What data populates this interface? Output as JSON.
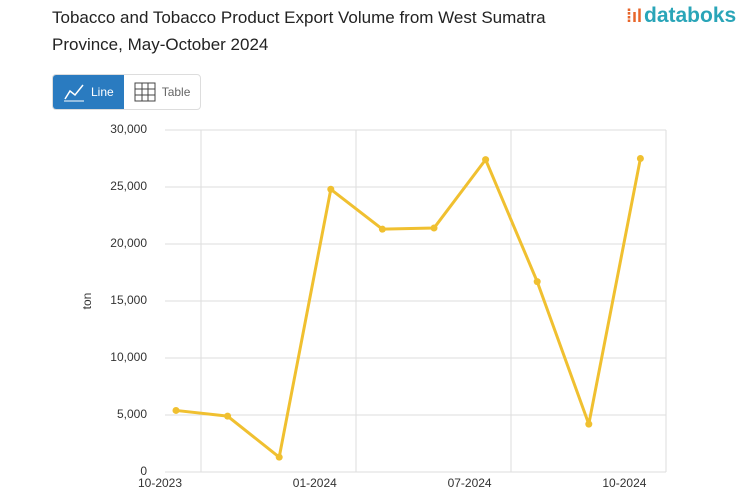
{
  "brand": "databoks",
  "tabs": [
    "Line",
    "Table"
  ],
  "chart_data": {
    "type": "line",
    "title": "Tobacco and Tobacco Product Export Volume from West Sumatra Province, May-October 2024",
    "y_label": "ton",
    "categories": [
      "10-2023",
      null,
      null,
      "01-2024",
      null,
      null,
      "07-2024",
      null,
      null,
      "10-2024"
    ],
    "series": [
      {
        "name": "ton",
        "color": "#f0c030",
        "values": [
          5400,
          4900,
          1300,
          24800,
          21300,
          21400,
          27400,
          16700,
          4200,
          27500
        ]
      }
    ],
    "ylim": [
      0,
      30000
    ],
    "yticks": [
      0,
      {
        "value": 5000,
        "label": "5,000"
      },
      {
        "value": 10000,
        "label": "10,000"
      },
      {
        "value": 15000,
        "label": "15,000"
      },
      {
        "value": 20000,
        "label": "20,000"
      },
      {
        "value": 25000,
        "label": "25,000"
      },
      {
        "value": 30000,
        "label": "30,000"
      }
    ],
    "grid": true
  }
}
